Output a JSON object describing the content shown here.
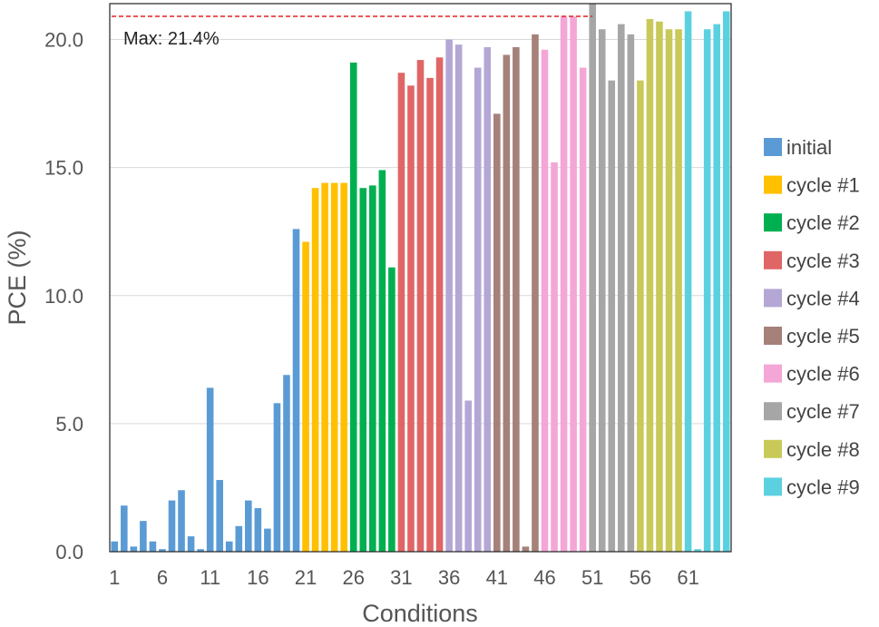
{
  "chart_data": {
    "type": "bar",
    "xlabel": "Conditions",
    "ylabel": "PCE (%)",
    "ylim": [
      0,
      21.4
    ],
    "xlim": [
      0.5,
      65.5
    ],
    "x_ticks": [
      1,
      6,
      11,
      16,
      21,
      26,
      31,
      36,
      41,
      46,
      51,
      56,
      61
    ],
    "y_ticks": [
      "0.0",
      "5.0",
      "10.0",
      "15.0",
      "20.0"
    ],
    "grid": "horizontal",
    "legend_position": "right",
    "annotation": {
      "label": "Max: 21.4%",
      "value": 21.4
    },
    "series": [
      {
        "name": "initial",
        "color": "#5b9bd5",
        "x": [
          1,
          2,
          3,
          4,
          5,
          6,
          7,
          8,
          9,
          10,
          11,
          12,
          13,
          14,
          15,
          16,
          17,
          18,
          19,
          20
        ],
        "values": [
          0.4,
          1.8,
          0.2,
          1.2,
          0.4,
          0.1,
          2.0,
          2.4,
          0.6,
          0.1,
          6.4,
          2.8,
          0.4,
          1.0,
          2.0,
          1.7,
          0.9,
          5.8,
          6.9,
          12.6
        ]
      },
      {
        "name": "cycle #1",
        "color": "#ffc000",
        "x": [
          21,
          22,
          23,
          24,
          25
        ],
        "values": [
          12.1,
          14.2,
          14.4,
          14.4,
          14.4
        ]
      },
      {
        "name": "cycle #2",
        "color": "#00b050",
        "x": [
          26,
          27,
          28,
          29,
          30
        ],
        "values": [
          19.1,
          14.2,
          14.3,
          14.9,
          11.1
        ]
      },
      {
        "name": "cycle #3",
        "color": "#e06666",
        "x": [
          31,
          32,
          33,
          34,
          35
        ],
        "values": [
          18.7,
          18.2,
          19.2,
          18.5,
          19.3
        ]
      },
      {
        "name": "cycle #4",
        "color": "#b4a7d6",
        "x": [
          36,
          37,
          38,
          39,
          40
        ],
        "values": [
          20.0,
          19.8,
          5.9,
          18.9,
          19.7
        ]
      },
      {
        "name": "cycle #5",
        "color": "#a5817a",
        "x": [
          41,
          42,
          43,
          44,
          45
        ],
        "values": [
          17.1,
          19.4,
          19.7,
          0.2,
          20.2
        ]
      },
      {
        "name": "cycle #6",
        "color": "#f4a6d7",
        "x": [
          46,
          47,
          48,
          49,
          50
        ],
        "values": [
          19.6,
          15.2,
          20.9,
          20.9,
          18.9
        ]
      },
      {
        "name": "cycle #7",
        "color": "#a6a6a6",
        "x": [
          51,
          52,
          53,
          54,
          55
        ],
        "values": [
          21.4,
          20.4,
          18.4,
          20.6,
          20.2
        ]
      },
      {
        "name": "cycle #8",
        "color": "#c9c95a",
        "x": [
          56,
          57,
          58,
          59,
          60
        ],
        "values": [
          18.4,
          20.8,
          20.7,
          20.4,
          20.4
        ]
      },
      {
        "name": "cycle #9",
        "color": "#5bd1e0",
        "x": [
          61,
          62,
          63,
          64,
          65
        ],
        "values": [
          21.1,
          0.1,
          20.4,
          20.6,
          21.1
        ]
      }
    ]
  }
}
